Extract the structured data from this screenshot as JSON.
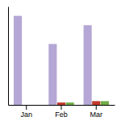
{
  "chart_data": {
    "type": "bar",
    "categories": [
      "Jan",
      "Feb",
      "Mar"
    ],
    "series": [
      {
        "color": "#B4A7D6",
        "values": [
          95,
          65,
          85
        ]
      },
      {
        "color": "#C0392B",
        "values": [
          0,
          2.5,
          4
        ]
      },
      {
        "color": "#70AD47",
        "values": [
          0,
          2.5,
          4
        ]
      }
    ],
    "ylim": [
      0,
      105
    ],
    "tick_labels": "x"
  }
}
